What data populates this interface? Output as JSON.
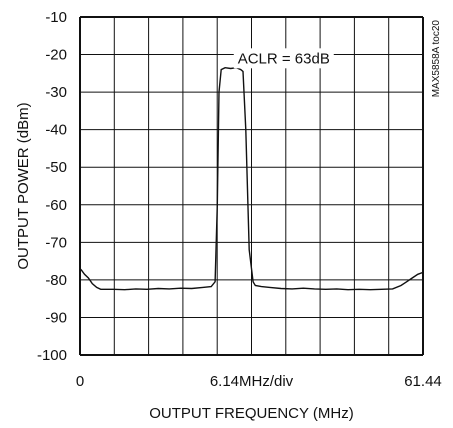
{
  "chart_data": {
    "type": "line",
    "title": "",
    "xlabel": "OUTPUT FREQUENCY (MHz)",
    "ylabel": "OUTPUT POWER (dBm)",
    "xlim": [
      0,
      61.44
    ],
    "ylim": [
      -100,
      -10
    ],
    "grid": true,
    "x_tick_labels": [
      "0",
      "6.14MHz/div",
      "61.44"
    ],
    "y_ticks": [
      -10,
      -20,
      -30,
      -40,
      -50,
      -60,
      -70,
      -80,
      -90,
      -100
    ],
    "y_tick_labels": [
      "-10",
      "-20",
      "-30",
      "-40",
      "-50",
      "-60",
      "-70",
      "-80",
      "-90",
      "-100"
    ],
    "annotations": [
      {
        "text": "ACLR = 63dB",
        "x": 36.5,
        "y": -21
      }
    ],
    "side_tag": "MAX5858A toc20",
    "series": [
      {
        "x": [
          0.0,
          0.3,
          0.8,
          1.5,
          2.2,
          3.0,
          3.7,
          4.5,
          6.0,
          8.0,
          10.0,
          12.0,
          14.0,
          16.0,
          18.0,
          20.0,
          22.0,
          23.5,
          24.2,
          24.6,
          24.9,
          25.3,
          26.0,
          27.0,
          28.0,
          28.8,
          29.2,
          29.7,
          30.3,
          31.0,
          31.4,
          32.5,
          34.0,
          36.0,
          38.0,
          40.0,
          42.0,
          44.0,
          46.0,
          48.0,
          50.0,
          52.0,
          54.0,
          56.0,
          57.5,
          58.5,
          59.5,
          60.5,
          61.44
        ],
        "y": [
          -77,
          -77.5,
          -78.5,
          -79.5,
          -81,
          -82,
          -82.5,
          -82.5,
          -82.5,
          -82.6,
          -82.4,
          -82.5,
          -82.3,
          -82.4,
          -82.2,
          -82.3,
          -82.0,
          -81.8,
          -80.5,
          -60,
          -30,
          -24,
          -23.5,
          -23.7,
          -23.5,
          -24,
          -24.5,
          -40,
          -72,
          -80.5,
          -81.5,
          -81.8,
          -82,
          -82.3,
          -82.4,
          -82.2,
          -82.4,
          -82.5,
          -82.4,
          -82.6,
          -82.5,
          -82.6,
          -82.5,
          -82.4,
          -81.5,
          -80.5,
          -79.5,
          -78.5,
          -78
        ]
      }
    ]
  }
}
